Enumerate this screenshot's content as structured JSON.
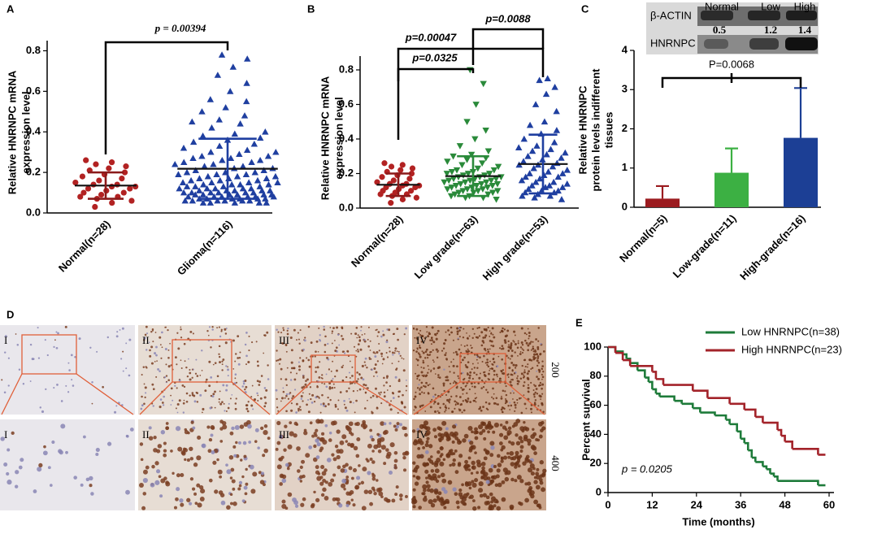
{
  "chart_data": [
    {
      "panel": "A",
      "type": "dot",
      "ylabel": [
        "Relative HNRNPC mRNA",
        "expression level"
      ],
      "categories": [
        "Normal(n=28)",
        "Glioma(n=116)"
      ],
      "colors": [
        "#b22222",
        "#1f3fa0"
      ],
      "markers": [
        "circle",
        "triangle"
      ],
      "values": [
        [
          0.26,
          0.25,
          0.24,
          0.23,
          0.22,
          0.21,
          0.2,
          0.19,
          0.18,
          0.17,
          0.16,
          0.15,
          0.14,
          0.14,
          0.13,
          0.13,
          0.12,
          0.12,
          0.11,
          0.1,
          0.1,
          0.09,
          0.08,
          0.08,
          0.07,
          0.06,
          0.05,
          0.03
        ],
        [
          0.78,
          0.76,
          0.72,
          0.68,
          0.64,
          0.6,
          0.56,
          0.55,
          0.52,
          0.5,
          0.48,
          0.46,
          0.45,
          0.44,
          0.42,
          0.4,
          0.39,
          0.38,
          0.37,
          0.36,
          0.35,
          0.34,
          0.33,
          0.32,
          0.31,
          0.3,
          0.3,
          0.29,
          0.28,
          0.28,
          0.27,
          0.27,
          0.26,
          0.26,
          0.25,
          0.25,
          0.24,
          0.24,
          0.23,
          0.23,
          0.22,
          0.22,
          0.21,
          0.21,
          0.2,
          0.2,
          0.2,
          0.19,
          0.19,
          0.19,
          0.18,
          0.18,
          0.18,
          0.17,
          0.17,
          0.17,
          0.16,
          0.16,
          0.16,
          0.15,
          0.15,
          0.15,
          0.15,
          0.14,
          0.14,
          0.14,
          0.14,
          0.13,
          0.13,
          0.13,
          0.13,
          0.12,
          0.12,
          0.12,
          0.12,
          0.12,
          0.11,
          0.11,
          0.11,
          0.11,
          0.11,
          0.1,
          0.1,
          0.1,
          0.1,
          0.1,
          0.1,
          0.09,
          0.09,
          0.09,
          0.09,
          0.09,
          0.09,
          0.08,
          0.08,
          0.08,
          0.08,
          0.08,
          0.08,
          0.07,
          0.07,
          0.07,
          0.07,
          0.07,
          0.07,
          0.06,
          0.06,
          0.06,
          0.06,
          0.06,
          0.06,
          0.05,
          0.05,
          0.05,
          0.05,
          0.05
        ]
      ],
      "means": [
        0.135,
        0.218
      ],
      "sds": [
        0.065,
        0.148
      ],
      "ylim": [
        0,
        0.85
      ],
      "yticks": [
        {
          "value": 0,
          "label": "0.0"
        },
        0.2,
        0.4,
        0.6,
        0.8
      ],
      "annotations": [
        "p = 0.00394"
      ]
    },
    {
      "panel": "B",
      "type": "dot",
      "ylabel": [
        "Relative HNRNPC mRNA",
        "expression level"
      ],
      "categories": [
        "Normal(n=28)",
        "Low grade(n=63)",
        "High grade(n=53)"
      ],
      "colors": [
        "#b22222",
        "#2a8a3a",
        "#1f3fa0"
      ],
      "markers": [
        "circle",
        "triangle-down",
        "triangle"
      ],
      "values": [
        [
          0.26,
          0.25,
          0.24,
          0.23,
          0.22,
          0.21,
          0.2,
          0.19,
          0.18,
          0.17,
          0.16,
          0.15,
          0.14,
          0.14,
          0.13,
          0.13,
          0.12,
          0.12,
          0.11,
          0.1,
          0.1,
          0.09,
          0.08,
          0.08,
          0.07,
          0.06,
          0.05,
          0.03
        ],
        [
          0.8,
          0.72,
          0.6,
          0.5,
          0.45,
          0.4,
          0.36,
          0.33,
          0.31,
          0.3,
          0.29,
          0.28,
          0.27,
          0.26,
          0.25,
          0.24,
          0.23,
          0.22,
          0.22,
          0.21,
          0.21,
          0.2,
          0.2,
          0.2,
          0.19,
          0.19,
          0.18,
          0.18,
          0.18,
          0.17,
          0.17,
          0.17,
          0.16,
          0.16,
          0.16,
          0.15,
          0.15,
          0.15,
          0.14,
          0.14,
          0.14,
          0.13,
          0.13,
          0.13,
          0.12,
          0.12,
          0.12,
          0.11,
          0.11,
          0.11,
          0.1,
          0.1,
          0.1,
          0.09,
          0.09,
          0.09,
          0.08,
          0.08,
          0.07,
          0.07,
          0.06,
          0.06,
          0.05
        ],
        [
          0.75,
          0.74,
          0.7,
          0.66,
          0.6,
          0.56,
          0.5,
          0.48,
          0.45,
          0.43,
          0.4,
          0.38,
          0.36,
          0.35,
          0.34,
          0.33,
          0.32,
          0.31,
          0.3,
          0.29,
          0.28,
          0.27,
          0.26,
          0.25,
          0.25,
          0.24,
          0.23,
          0.22,
          0.21,
          0.2,
          0.2,
          0.19,
          0.18,
          0.18,
          0.17,
          0.16,
          0.15,
          0.15,
          0.14,
          0.13,
          0.13,
          0.12,
          0.12,
          0.11,
          0.1,
          0.1,
          0.09,
          0.09,
          0.08,
          0.07,
          0.07,
          0.06,
          0.05
        ]
      ],
      "means": [
        0.135,
        0.185,
        0.255
      ],
      "sds": [
        0.065,
        0.115,
        0.17
      ],
      "ylim": [
        0,
        0.88
      ],
      "yticks": [
        {
          "value": 0,
          "label": "0.0"
        },
        0.2,
        0.4,
        0.6,
        0.8
      ],
      "annotations": [
        "p=0.0088",
        "p=0.00047",
        "p=0.0325"
      ]
    },
    {
      "panel": "C",
      "type": "bar",
      "ylabel": [
        "Relative HNRNPC",
        "protein levels indifferent",
        "tissues"
      ],
      "categories": [
        "Normal(n=5)",
        "Low-grade(n=11)",
        "High-grade(n=16)"
      ],
      "values": [
        0.22,
        0.88,
        1.77
      ],
      "errors": [
        0.32,
        0.62,
        1.27
      ],
      "colors": [
        "#9b1b1f",
        "#3cb043",
        "#1c3f95"
      ],
      "ylim": [
        0,
        4
      ],
      "yticks": [
        0,
        1,
        2,
        3,
        4
      ],
      "annotations": [
        "P=0.0068"
      ],
      "blot": {
        "columns": [
          "Normal",
          "Low",
          "High"
        ],
        "rows": [
          "β-ACTIN",
          "HNRNPC"
        ],
        "ratios": [
          0.5,
          1.2,
          1.4
        ]
      }
    },
    {
      "panel": "E",
      "type": "step",
      "xlabel": "Time (months)",
      "ylabel": "Percent survival",
      "xlim": [
        0,
        60
      ],
      "xticks": [
        0,
        12,
        24,
        36,
        48,
        60
      ],
      "ylim": [
        0,
        100
      ],
      "yticks": [
        0,
        20,
        40,
        60,
        80,
        100
      ],
      "legend": "upper right",
      "annotations": [
        "p = 0.0205"
      ],
      "series": [
        {
          "name": "Low HNRNPC(n=38)",
          "color": "#1e7b3a",
          "x": [
            0,
            2,
            4,
            5,
            6,
            8,
            10,
            11,
            12,
            13,
            14,
            18,
            20,
            23,
            25,
            29,
            32,
            33,
            35,
            36,
            37,
            38,
            39,
            40,
            42,
            43,
            44,
            45,
            46,
            57,
            59
          ],
          "y": [
            100,
            97,
            95,
            92,
            89,
            84,
            79,
            76,
            71,
            68,
            66,
            63,
            61,
            58,
            55,
            53,
            50,
            47,
            42,
            37,
            34,
            29,
            24,
            21,
            18,
            16,
            13,
            11,
            8,
            5,
            5
          ]
        },
        {
          "name": "High HNRNPC(n=23)",
          "color": "#a3232a",
          "x": [
            0,
            2,
            4,
            6,
            12,
            13,
            15,
            23,
            27,
            33,
            37,
            40,
            42,
            46,
            47,
            48,
            50,
            57,
            59
          ],
          "y": [
            100,
            96,
            91,
            87,
            83,
            78,
            74,
            70,
            65,
            61,
            57,
            52,
            48,
            43,
            39,
            35,
            30,
            26,
            26
          ]
        }
      ]
    }
  ],
  "figure_d": {
    "panel": "D",
    "columns": [
      "I",
      "II",
      "III",
      "IV"
    ],
    "magnifications": [
      "200",
      "400"
    ]
  }
}
